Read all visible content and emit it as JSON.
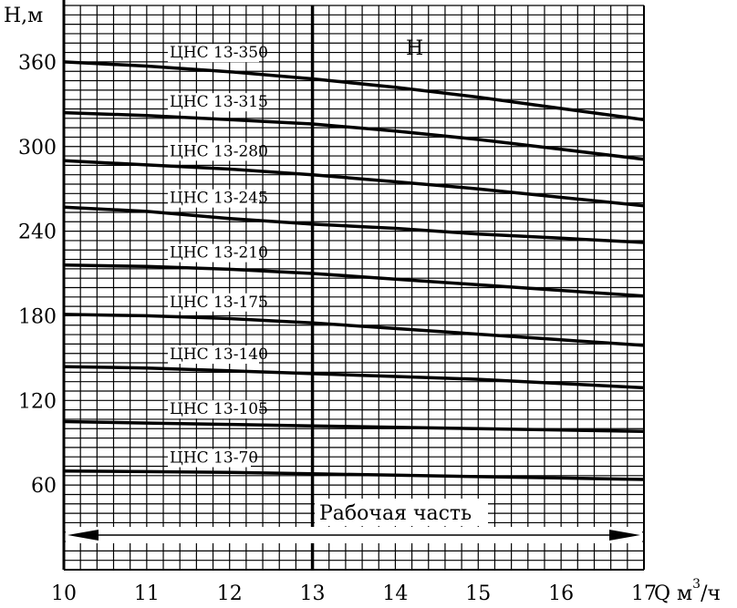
{
  "chart_data": {
    "type": "line",
    "title": "",
    "curve_letter": "H",
    "xlabel": "Q м³/ч",
    "xlabel_base": "Q м",
    "xlabel_sup": "3",
    "xlabel_tail": "/ч",
    "ylabel": "Н,м",
    "xlim": [
      10,
      17
    ],
    "ylim": [
      0,
      400
    ],
    "x_ticks": [
      10,
      11,
      12,
      13,
      14,
      15,
      16,
      17
    ],
    "y_ticks": [
      60,
      120,
      180,
      240,
      300,
      360
    ],
    "grid": true,
    "working_region": {
      "label": "Рабочая часть",
      "x_range": [
        10,
        17
      ]
    },
    "marker_x": 13,
    "series": [
      {
        "name": "ЦНС 13-350",
        "x": [
          10,
          11,
          12,
          13,
          14,
          15,
          16,
          17
        ],
        "y": [
          360,
          357,
          353,
          348,
          342,
          335,
          327,
          319
        ]
      },
      {
        "name": "ЦНС 13-315",
        "x": [
          10,
          11,
          12,
          13,
          14,
          15,
          16,
          17
        ],
        "y": [
          324,
          322,
          319,
          316,
          311,
          305,
          298,
          291
        ]
      },
      {
        "name": "ЦНС 13-280",
        "x": [
          10,
          11,
          12,
          13,
          14,
          15,
          16,
          17
        ],
        "y": [
          290,
          287,
          284,
          280,
          275,
          270,
          264,
          258
        ]
      },
      {
        "name": "ЦНС 13-245",
        "x": [
          10,
          11,
          12,
          13,
          14,
          15,
          16,
          17
        ],
        "y": [
          257,
          254,
          249,
          245,
          242,
          238,
          235,
          232
        ]
      },
      {
        "name": "ЦНС 13-210",
        "x": [
          10,
          11,
          12,
          13,
          14,
          15,
          16,
          17
        ],
        "y": [
          216,
          215,
          213,
          210,
          206,
          202,
          198,
          194
        ]
      },
      {
        "name": "ЦНС 13-175",
        "x": [
          10,
          11,
          12,
          13,
          14,
          15,
          16,
          17
        ],
        "y": [
          181,
          180,
          178,
          175,
          171,
          167,
          163,
          159
        ]
      },
      {
        "name": "ЦНС 13-140",
        "x": [
          10,
          11,
          12,
          13,
          14,
          15,
          16,
          17
        ],
        "y": [
          144,
          143,
          141,
          139,
          137,
          135,
          132,
          129
        ]
      },
      {
        "name": "ЦНС 13-105",
        "x": [
          10,
          11,
          12,
          13,
          14,
          15,
          16,
          17
        ],
        "y": [
          105,
          104,
          103,
          102,
          101,
          100,
          99,
          98
        ]
      },
      {
        "name": "ЦНС 13-70",
        "x": [
          10,
          11,
          12,
          13,
          14,
          15,
          16,
          17
        ],
        "y": [
          70,
          69.5,
          69,
          68,
          67,
          66,
          65,
          64
        ]
      }
    ]
  }
}
